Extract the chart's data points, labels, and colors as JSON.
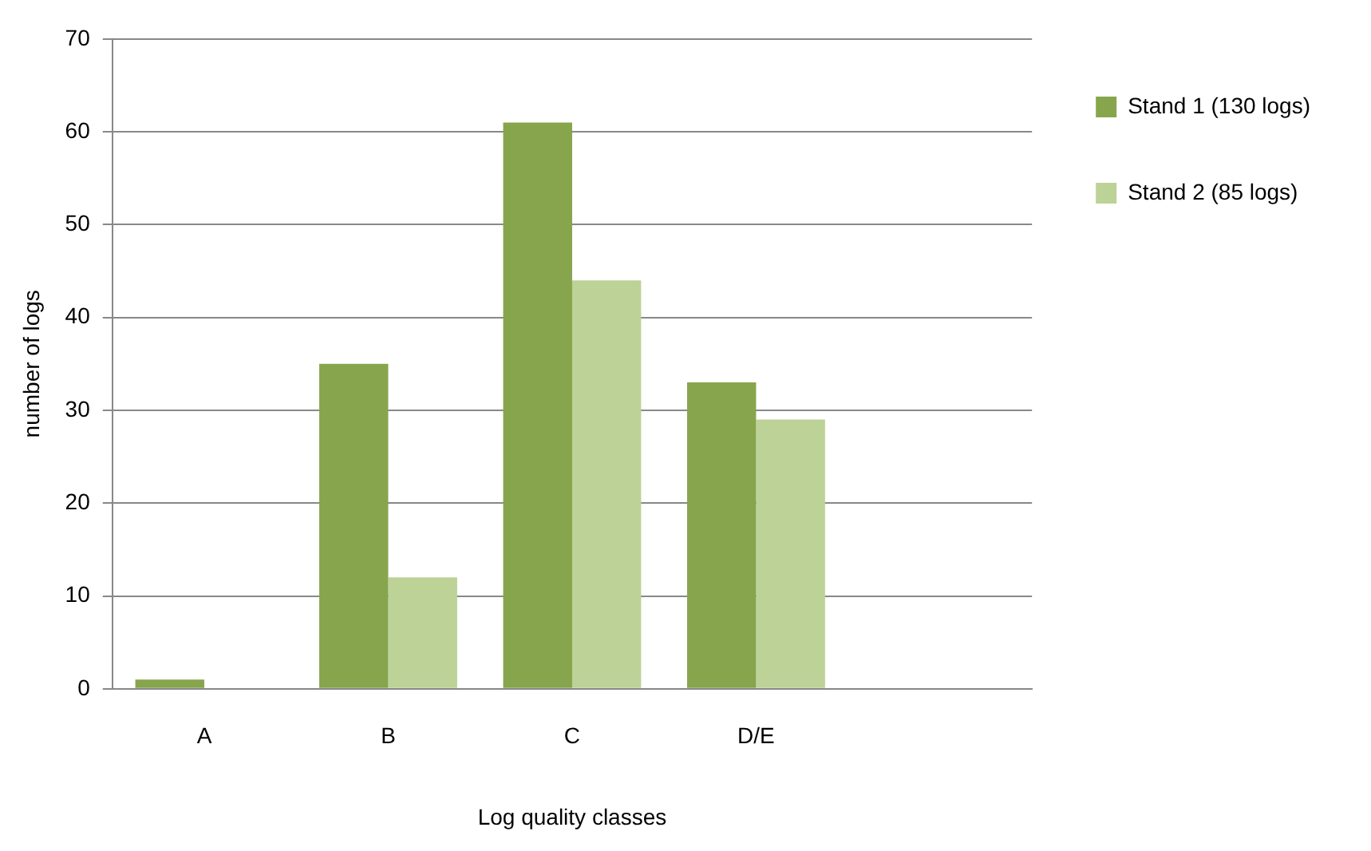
{
  "chart_data": {
    "type": "bar",
    "xlabel": "Log quality classes",
    "ylabel": "number of logs",
    "categories": [
      "A",
      "B",
      "C",
      "D/E",
      null
    ],
    "series": [
      {
        "name": "Stand 1 (130 logs)",
        "color": "#87a54c",
        "values": [
          1,
          35,
          61,
          33,
          null
        ]
      },
      {
        "name": "Stand 2 (85 logs)",
        "color": "#bdd297",
        "values": [
          0,
          12,
          44,
          29,
          null
        ]
      }
    ],
    "ylim": [
      0,
      70
    ],
    "yticks": [
      0,
      10,
      20,
      30,
      40,
      50,
      60,
      70
    ],
    "grid": "y",
    "legend": "right"
  }
}
